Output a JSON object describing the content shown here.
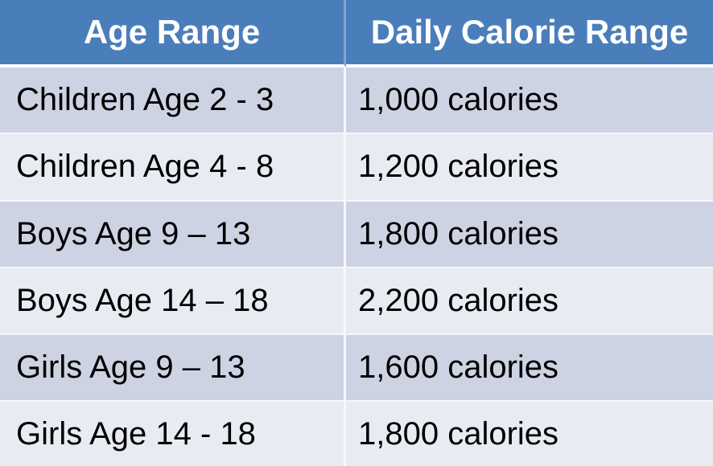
{
  "chart_data": {
    "type": "table",
    "columns": [
      "Age Range",
      "Daily Calorie Range"
    ],
    "rows": [
      {
        "age_range": "Children Age 2 - 3",
        "daily_calories": "1,000 calories",
        "calories_value": 1000
      },
      {
        "age_range": "Children Age 4 - 8",
        "daily_calories": "1,200 calories",
        "calories_value": 1200
      },
      {
        "age_range": "Boys Age 9 – 13",
        "daily_calories": "1,800 calories",
        "calories_value": 1800
      },
      {
        "age_range": "Boys Age 14 – 18",
        "daily_calories": "2,200 calories",
        "calories_value": 2200
      },
      {
        "age_range": "Girls Age 9 – 13",
        "daily_calories": "1,600 calories",
        "calories_value": 1600
      },
      {
        "age_range": "Girls Age 14 - 18",
        "daily_calories": "1,800 calories",
        "calories_value": 1800
      }
    ],
    "layout": {
      "header_position": "top",
      "banded_rows": true,
      "grid": "light"
    }
  },
  "colors": {
    "header_bg": "#4A7EBB",
    "header_text": "#FFFFFF",
    "row_dark": "#CED3E3",
    "row_light": "#E9EBF3",
    "grid_line": "#F6F8FB",
    "header_divider": "#82A5CE",
    "body_text": "#000000"
  }
}
